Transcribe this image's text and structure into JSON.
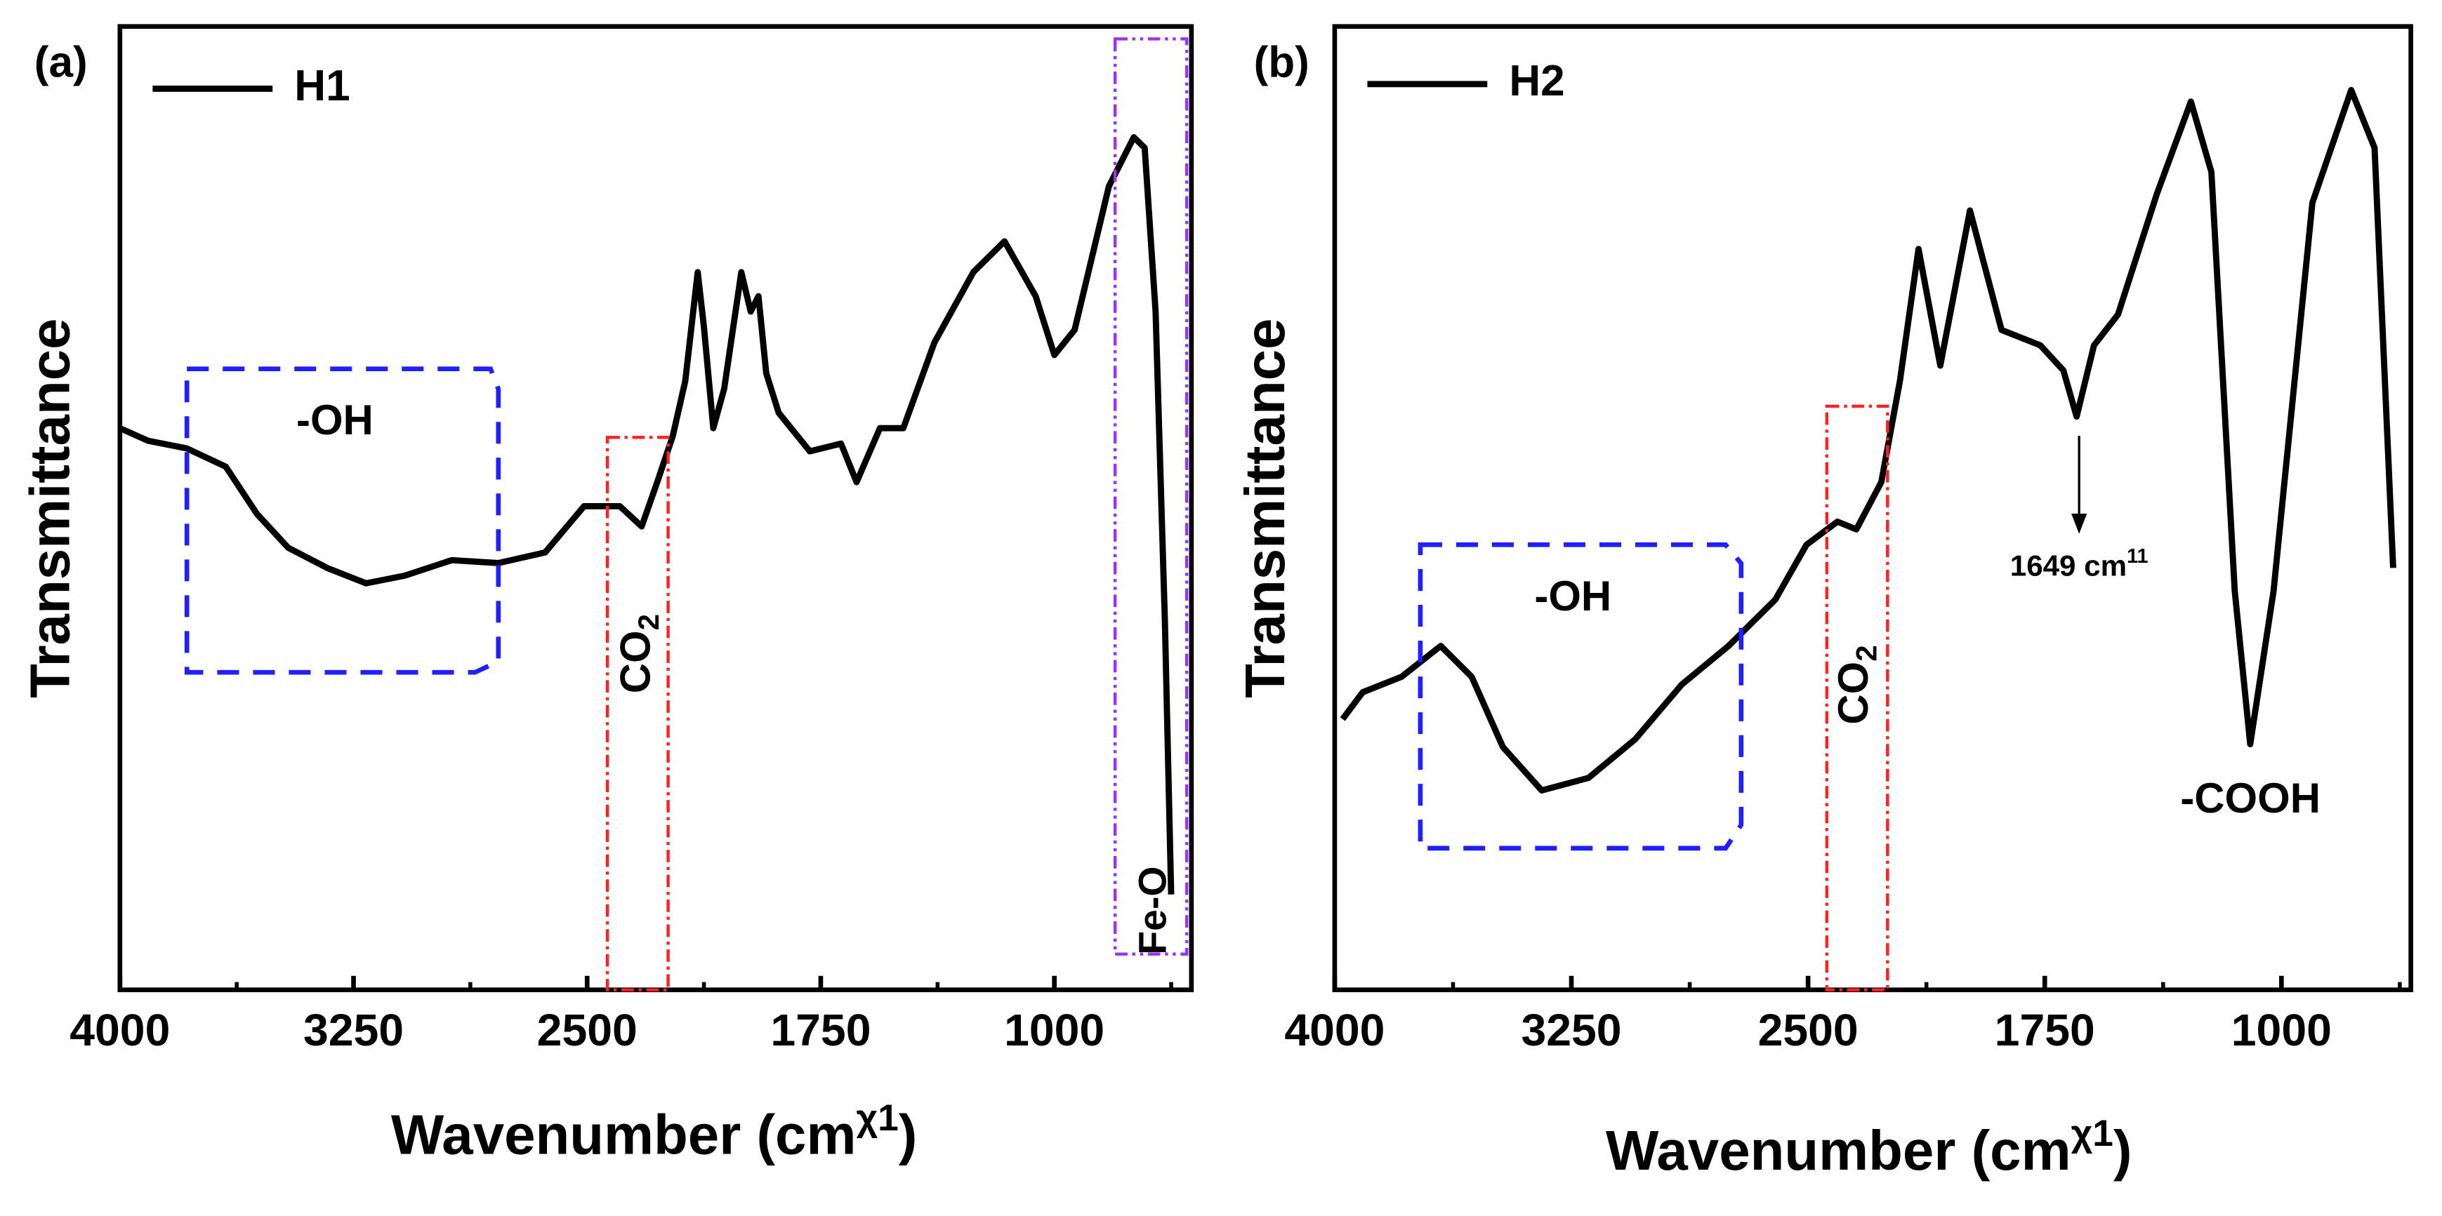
{
  "chart_data": [
    {
      "type": "line",
      "panel_label": "(a)",
      "ylabel": "Transmittance",
      "xlabel": "Wavenumber (cm",
      "xlabel_sup": "χ1",
      "xlim": [
        4000,
        560
      ],
      "xticks": [
        4000,
        3250,
        2500,
        1750,
        1000
      ],
      "xminorticks": [
        3625,
        2875,
        2125,
        1375,
        625
      ],
      "ylim": [
        0,
        100
      ],
      "series": [
        {
          "name": "H1",
          "color": "#000000",
          "x": [
            4000,
            3910,
            3785,
            3660,
            3560,
            3460,
            3335,
            3210,
            3085,
            2935,
            2785,
            2635,
            2510,
            2395,
            2325,
            2275,
            2225,
            2185,
            2145,
            2125,
            2095,
            2060,
            2005,
            1975,
            1950,
            1925,
            1885,
            1785,
            1685,
            1635,
            1560,
            1485,
            1385,
            1260,
            1160,
            1060,
            1000,
            935,
            825,
            745,
            710,
            675,
            645,
            625
          ],
          "values": [
            58.3,
            57,
            56.2,
            54.3,
            49.4,
            45.9,
            43.8,
            42.2,
            43,
            44.6,
            44.3,
            45.4,
            50.2,
            50.2,
            48.1,
            52.7,
            57.5,
            63.2,
            74.5,
            68.8,
            58.3,
            62.4,
            74.5,
            70.4,
            72,
            64,
            59.9,
            55.9,
            56.7,
            52.7,
            58.3,
            58.3,
            67.2,
            74.5,
            77.7,
            72,
            65.9,
            68.5,
            83.4,
            88.5,
            87.4,
            70.4,
            38.1,
            9.9
          ]
        }
      ],
      "annotations": {
        "oh": "-OH",
        "co2": "CO",
        "co2_sub": "2",
        "feo": "Fe-O"
      }
    },
    {
      "type": "line",
      "panel_label": "(b)",
      "ylabel": "Transmittance",
      "xlabel": "Wavenumber (cm",
      "xlabel_sup": "χ1",
      "xlim": [
        4000,
        590
      ],
      "xticks": [
        4000,
        3250,
        2500,
        1750,
        1000
      ],
      "xminorticks": [
        3625,
        2875,
        2125,
        1375,
        625
      ],
      "ylim": [
        0,
        100
      ],
      "series": [
        {
          "name": "H2",
          "color": "#000000",
          "x": [
            3975,
            3911,
            3788,
            3664,
            3566,
            3467,
            3344,
            3196,
            3048,
            2900,
            2752,
            2604,
            2505,
            2407,
            2347,
            2268,
            2209,
            2150,
            2081,
            1987,
            1887,
            1764,
            1691,
            1649,
            1594,
            1518,
            1395,
            1287,
            1222,
            1148,
            1099,
            1025,
            902,
            779,
            705,
            646
          ],
          "values": [
            28.1,
            30.9,
            32.5,
            35.7,
            32.5,
            25.2,
            20.7,
            22,
            26,
            31.7,
            35.7,
            40.5,
            46.2,
            48.6,
            47.8,
            52.7,
            63.2,
            76.9,
            64.8,
            80.9,
            68.5,
            66.9,
            64.3,
            59.5,
            66.9,
            70.1,
            82.6,
            92.2,
            84.9,
            41.4,
            25.5,
            41.4,
            81.7,
            93.4,
            87.4,
            43.8
          ]
        }
      ],
      "annotations": {
        "oh": "-OH",
        "co2": "CO",
        "co2_sub": "2",
        "cooh": "-COOH",
        "peak": "1649 cm",
        "peak_sup": "11"
      }
    }
  ]
}
